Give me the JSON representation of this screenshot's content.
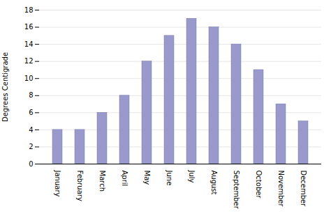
{
  "chart_data": {
    "type": "bar",
    "categories": [
      "January",
      "February",
      "March",
      "April",
      "May",
      "June",
      "July",
      "August",
      "September",
      "October",
      "November",
      "December"
    ],
    "values": [
      4,
      4,
      6,
      8,
      12,
      15,
      17,
      16,
      14,
      11,
      7,
      5
    ],
    "color": "#9999cc",
    "ylabel": "Degrees Centigrade",
    "ylim": [
      0,
      18
    ],
    "yticks": [
      0,
      2,
      4,
      6,
      8,
      10,
      12,
      14,
      16,
      18
    ],
    "grid": true
  }
}
